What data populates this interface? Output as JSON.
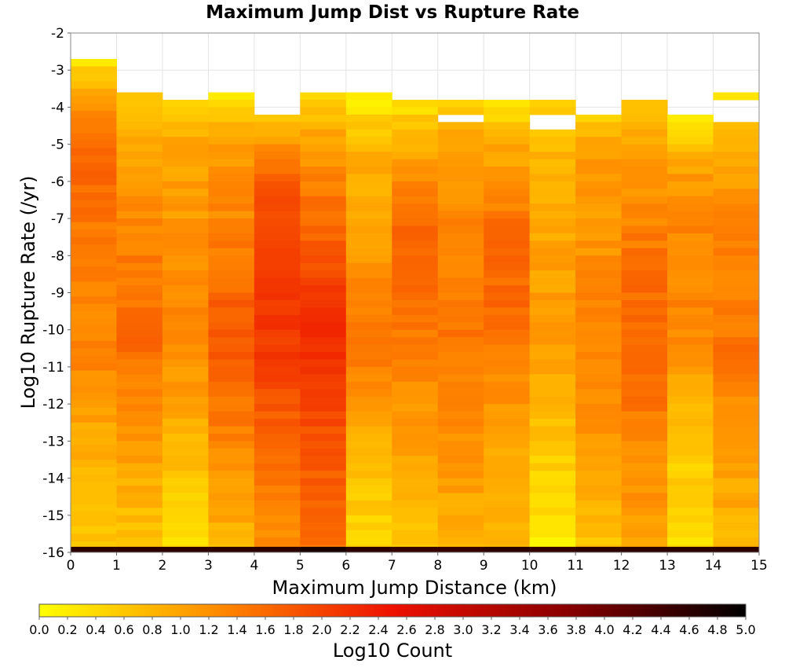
{
  "chart_data": {
    "type": "heatmap",
    "title": "Maximum Jump Dist vs Rupture Rate",
    "xlabel": "Maximum Jump Distance (km)",
    "ylabel": "Log10 Rupture Rate (/yr)",
    "colorbar_label": "Log10 Count",
    "xlim": [
      0,
      15
    ],
    "ylim": [
      -16,
      -2
    ],
    "x_ticks": [
      "0",
      "1",
      "2",
      "3",
      "4",
      "5",
      "6",
      "7",
      "8",
      "9",
      "10",
      "11",
      "12",
      "13",
      "14",
      "15"
    ],
    "y_ticks": [
      "-2",
      "-3",
      "-4",
      "-5",
      "-6",
      "-7",
      "-8",
      "-9",
      "-10",
      "-11",
      "-12",
      "-13",
      "-14",
      "-15",
      "-16"
    ],
    "colorbar_ticks": [
      "0.0",
      "0.2",
      "0.4",
      "0.6",
      "0.8",
      "1.0",
      "1.2",
      "1.4",
      "1.6",
      "1.8",
      "2.0",
      "2.2",
      "2.4",
      "2.6",
      "2.8",
      "3.0",
      "3.2",
      "3.4",
      "3.6",
      "3.8",
      "4.0",
      "4.2",
      "4.4",
      "4.6",
      "4.8",
      "5.0"
    ],
    "colorbar_range": [
      0,
      5
    ],
    "colorscale": [
      "#ffff00",
      "#ff8c00",
      "#ee1100",
      "#880000",
      "#000000"
    ],
    "x_bin_width_km": 1,
    "y_bin_width_log10": 0.2,
    "y_bin_start": -16,
    "column_top_y": [
      -2.7,
      -3.6,
      -3.8,
      -3.6,
      -4.2,
      -3.6,
      -3.6,
      -3.8,
      -3.8,
      -3.8,
      -3.8,
      -4.2,
      -3.8,
      -4.2,
      -3.6
    ],
    "column_gaps": [
      [],
      [],
      [],
      [],
      [],
      [],
      [],
      [],
      [
        [
          -4.4,
          -4.2
        ]
      ],
      [],
      [
        [
          -4.6,
          -4.2
        ]
      ],
      [],
      [],
      [],
      [
        [
          -4.4,
          -3.8
        ]
      ]
    ],
    "column_profiles": [
      [
        [
          -2.7,
          0.3
        ],
        [
          -4.0,
          1.2
        ],
        [
          -5.6,
          1.7
        ],
        [
          -7.5,
          1.4
        ],
        [
          -9.0,
          1.3
        ],
        [
          -11.0,
          1.3
        ],
        [
          -13.0,
          0.9
        ],
        [
          -15.8,
          0.6
        ]
      ],
      [
        [
          -3.6,
          0.5
        ],
        [
          -5.0,
          0.9
        ],
        [
          -7.0,
          1.3
        ],
        [
          -10.5,
          1.6
        ],
        [
          -12.5,
          1.2
        ],
        [
          -15.8,
          0.6
        ]
      ],
      [
        [
          -3.8,
          0.5
        ],
        [
          -5.0,
          1.0
        ],
        [
          -7.0,
          1.1
        ],
        [
          -10.0,
          1.3
        ],
        [
          -13.0,
          0.8
        ],
        [
          -15.8,
          0.3
        ]
      ],
      [
        [
          -3.6,
          0.3
        ],
        [
          -5.0,
          1.1
        ],
        [
          -7.0,
          1.3
        ],
        [
          -10.0,
          1.8
        ],
        [
          -12.0,
          1.5
        ],
        [
          -15.8,
          0.8
        ]
      ],
      [
        [
          -4.2,
          0.7
        ],
        [
          -5.5,
          1.4
        ],
        [
          -6.5,
          1.9
        ],
        [
          -10.5,
          2.1
        ],
        [
          -13.0,
          1.6
        ],
        [
          -15.8,
          1.2
        ]
      ],
      [
        [
          -3.6,
          0.4
        ],
        [
          -5.0,
          1.1
        ],
        [
          -7.0,
          1.6
        ],
        [
          -10.3,
          2.3
        ],
        [
          -12.5,
          1.9
        ],
        [
          -15.8,
          1.5
        ]
      ],
      [
        [
          -3.6,
          0.1
        ],
        [
          -5.0,
          0.8
        ],
        [
          -7.0,
          1.0
        ],
        [
          -9.0,
          1.3
        ],
        [
          -11.0,
          1.4
        ],
        [
          -13.0,
          0.9
        ],
        [
          -15.8,
          0.4
        ]
      ],
      [
        [
          -3.8,
          0.3
        ],
        [
          -5.0,
          0.9
        ],
        [
          -7.0,
          1.6
        ],
        [
          -9.5,
          1.5
        ],
        [
          -12.0,
          1.2
        ],
        [
          -15.8,
          0.6
        ]
      ],
      [
        [
          -3.8,
          0.5
        ],
        [
          -5.0,
          1.0
        ],
        [
          -7.0,
          1.3
        ],
        [
          -10.0,
          1.5
        ],
        [
          -13.0,
          1.2
        ],
        [
          -15.8,
          0.8
        ]
      ],
      [
        [
          -3.8,
          0.2
        ],
        [
          -5.0,
          0.9
        ],
        [
          -7.8,
          1.7
        ],
        [
          -10.0,
          1.5
        ],
        [
          -12.5,
          1.1
        ],
        [
          -15.8,
          0.7
        ]
      ],
      [
        [
          -3.8,
          0.5
        ],
        [
          -5.0,
          0.8
        ],
        [
          -8.0,
          1.0
        ],
        [
          -10.5,
          1.1
        ],
        [
          -13.0,
          0.6
        ],
        [
          -15.8,
          0.2
        ]
      ],
      [
        [
          -4.2,
          0.5
        ],
        [
          -5.5,
          1.2
        ],
        [
          -7.0,
          1.1
        ],
        [
          -10.0,
          1.4
        ],
        [
          -12.5,
          1.2
        ],
        [
          -15.8,
          0.6
        ]
      ],
      [
        [
          -3.8,
          0.5
        ],
        [
          -5.0,
          1.0
        ],
        [
          -8.0,
          1.5
        ],
        [
          -11.0,
          1.7
        ],
        [
          -13.0,
          1.3
        ],
        [
          -15.8,
          1.0
        ]
      ],
      [
        [
          -4.2,
          0.2
        ],
        [
          -5.5,
          1.0
        ],
        [
          -7.0,
          1.3
        ],
        [
          -10.0,
          1.3
        ],
        [
          -13.0,
          0.6
        ],
        [
          -15.8,
          0.4
        ]
      ],
      [
        [
          -3.6,
          0.4
        ],
        [
          -5.0,
          0.9
        ],
        [
          -7.0,
          1.3
        ],
        [
          -10.5,
          1.5
        ],
        [
          -13.0,
          1.1
        ],
        [
          -15.8,
          0.8
        ]
      ]
    ],
    "bottom_row": {
      "y_range": [
        -16,
        -15.85
      ],
      "values_by_column": [
        4.6,
        4.6,
        4.6,
        4.6,
        4.6,
        4.8,
        4.6,
        4.5,
        4.5,
        4.6,
        4.5,
        4.6,
        4.6,
        4.6,
        4.6
      ]
    },
    "grid": true,
    "legend": "colorbar-bottom"
  }
}
